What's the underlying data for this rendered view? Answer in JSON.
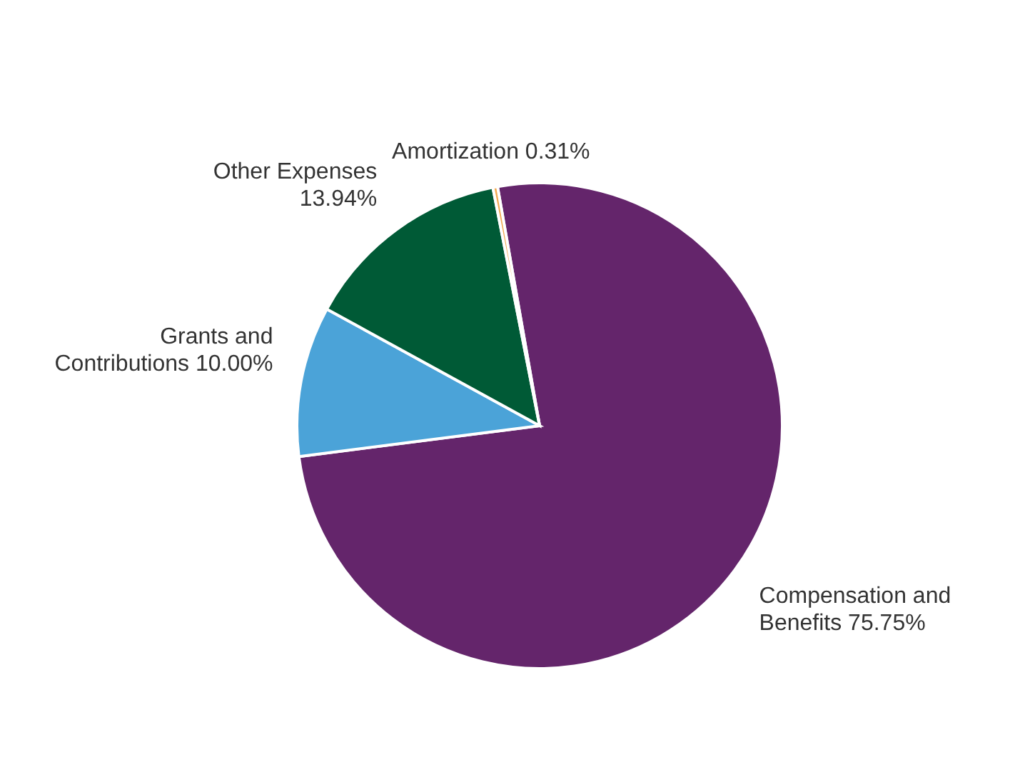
{
  "chart_data": {
    "type": "pie",
    "categories": [
      "Compensation and Benefits",
      "Grants and Contributions",
      "Other Expenses",
      "Amortization"
    ],
    "values": [
      75.75,
      10.0,
      13.94,
      0.31
    ],
    "colors": [
      "#64256b",
      "#4ba3d8",
      "#005a36",
      "#f2a950"
    ],
    "value_labels": [
      "75.75%",
      "10.00%",
      "13.94%",
      "0.31%"
    ],
    "legend": false
  }
}
